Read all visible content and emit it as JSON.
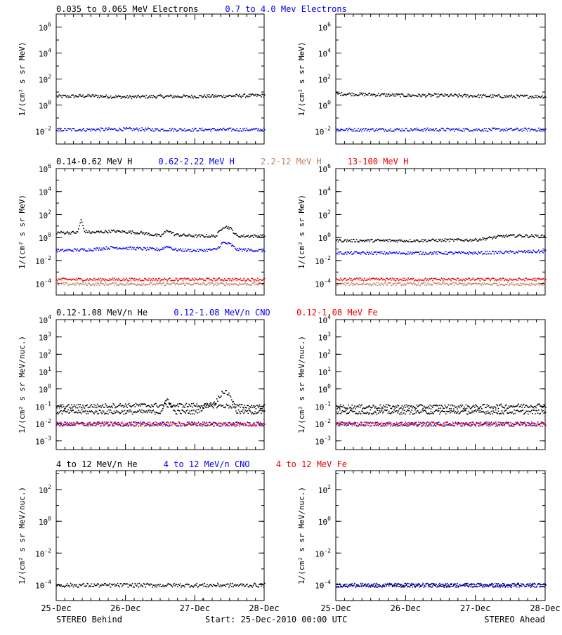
{
  "colors": {
    "black": "#000000",
    "blue": "#0000ee",
    "tan": "#c08060",
    "red": "#ee0000"
  },
  "footer": {
    "left_label": "STEREO Behind",
    "center_label": "Start: 25-Dec-2010 00:00 UTC",
    "right_label": "STEREO Ahead"
  },
  "chart_data": [
    {
      "row": 0,
      "type": "scatter",
      "legend_text": [
        {
          "text": "0.035 to 0.065 MeV Electrons",
          "color": "#000000"
        },
        {
          "text": "0.7 to 4.0 Mev Electrons",
          "color": "#0000ee"
        }
      ],
      "ylabel": "1/(cm² s sr MeV)",
      "y_scale": "log",
      "ylim_log10": [
        -3,
        7
      ],
      "y_ticks": [
        {
          "exp": -2,
          "label": "10-2"
        },
        {
          "exp": 0,
          "label": "100"
        },
        {
          "exp": 2,
          "label": "102"
        },
        {
          "exp": 4,
          "label": "104"
        },
        {
          "exp": 6,
          "label": "106"
        }
      ],
      "x_ticks": [
        "25-Dec",
        "26-Dec",
        "27-Dec",
        "28-Dec"
      ],
      "xlim_days": [
        0,
        3
      ],
      "panels": [
        {
          "side": "STEREO Behind",
          "series": [
            {
              "color": "#000000",
              "x": [
                0,
                0.5,
                1,
                1.5,
                2,
                2.5,
                3
              ],
              "y": [
                5,
                5.5,
                4.5,
                5,
                5,
                5.5,
                6
              ]
            },
            {
              "color": "#0000ee",
              "x": [
                0,
                0.5,
                1,
                1.5,
                2,
                2.5,
                3
              ],
              "y": [
                0.014,
                0.014,
                0.015,
                0.014,
                0.014,
                0.014,
                0.014
              ]
            }
          ]
        },
        {
          "side": "STEREO Ahead",
          "series": [
            {
              "color": "#000000",
              "x": [
                0,
                0.5,
                1,
                1.5,
                2,
                2.5,
                3
              ],
              "y": [
                8,
                7,
                6,
                6,
                5.5,
                5,
                5
              ]
            },
            {
              "color": "#0000ee",
              "x": [
                0,
                0.5,
                1,
                1.5,
                2,
                2.5,
                3
              ],
              "y": [
                0.014,
                0.014,
                0.014,
                0.014,
                0.014,
                0.014,
                0.014
              ]
            }
          ]
        }
      ]
    },
    {
      "row": 1,
      "type": "scatter",
      "legend_text": [
        {
          "text": "0.14-0.62 MeV H",
          "color": "#000000"
        },
        {
          "text": "0.62-2.22 MeV H",
          "color": "#0000ee"
        },
        {
          "text": "2.2-12 MeV H",
          "color": "#c08060"
        },
        {
          "text": "13-100 MeV H",
          "color": "#ee0000"
        }
      ],
      "ylabel": "1/(cm² s sr MeV)",
      "y_scale": "log",
      "ylim_log10": [
        -5,
        6
      ],
      "y_ticks": [
        {
          "exp": -4,
          "label": "10-4"
        },
        {
          "exp": -2,
          "label": "10-2"
        },
        {
          "exp": 0,
          "label": "100"
        },
        {
          "exp": 2,
          "label": "102"
        },
        {
          "exp": 4,
          "label": "104"
        },
        {
          "exp": 6,
          "label": "106"
        }
      ],
      "x_ticks": [
        "25-Dec",
        "26-Dec",
        "27-Dec",
        "28-Dec"
      ],
      "xlim_days": [
        0,
        3
      ],
      "panels": [
        {
          "side": "STEREO Behind",
          "series": [
            {
              "color": "#000000",
              "x": [
                0,
                0.3,
                0.35,
                0.4,
                0.5,
                0.8,
                1.2,
                1.5,
                1.6,
                1.7,
                2.0,
                2.3,
                2.4,
                2.5,
                2.6,
                3
              ],
              "y": [
                3,
                3,
                40,
                4,
                3,
                4,
                3,
                1.5,
                5,
                2,
                1.5,
                1.5,
                10,
                8,
                1.5,
                1.5
              ]
            },
            {
              "color": "#0000ee",
              "x": [
                0,
                0.5,
                0.8,
                1.2,
                1.5,
                1.6,
                1.7,
                2.0,
                2.3,
                2.4,
                2.5,
                2.6,
                3
              ],
              "y": [
                0.08,
                0.1,
                0.15,
                0.12,
                0.1,
                0.2,
                0.1,
                0.08,
                0.1,
                0.4,
                0.3,
                0.1,
                0.08
              ]
            },
            {
              "color": "#ee0000",
              "x": [
                0,
                1,
                2,
                3
              ],
              "y": [
                0.00025,
                0.00025,
                0.00025,
                0.00025
              ]
            },
            {
              "color": "#c08060",
              "x": [
                0,
                1,
                2,
                3
              ],
              "y": [
                0.0001,
                0.0001,
                0.0001,
                0.0001
              ]
            }
          ]
        },
        {
          "side": "STEREO Ahead",
          "series": [
            {
              "color": "#000000",
              "x": [
                0,
                1,
                2,
                2.4,
                2.6,
                3
              ],
              "y": [
                0.6,
                0.6,
                0.7,
                1.5,
                1.6,
                1.4
              ]
            },
            {
              "color": "#0000ee",
              "x": [
                0,
                1,
                2,
                3
              ],
              "y": [
                0.05,
                0.05,
                0.05,
                0.07
              ]
            },
            {
              "color": "#ee0000",
              "x": [
                0,
                1,
                2,
                3
              ],
              "y": [
                0.00025,
                0.00025,
                0.00025,
                0.00025
              ]
            },
            {
              "color": "#c08060",
              "x": [
                0,
                1,
                2,
                3
              ],
              "y": [
                0.0001,
                0.0001,
                0.0001,
                0.0001
              ]
            }
          ]
        }
      ]
    },
    {
      "row": 2,
      "type": "scatter",
      "legend_text": [
        {
          "text": "0.12-1.08 MeV/n He",
          "color": "#000000"
        },
        {
          "text": "0.12-1.08 MeV/n CNO",
          "color": "#0000ee"
        },
        {
          "text": "0.12-1.08 MeV Fe",
          "color": "#ee0000"
        }
      ],
      "ylabel": "1/(cm² s sr MeV/nuc.)",
      "y_scale": "log",
      "ylim_log10": [
        -3.5,
        4
      ],
      "y_ticks": [
        {
          "exp": -3,
          "label": "10-3"
        },
        {
          "exp": -2,
          "label": "10-2"
        },
        {
          "exp": -1,
          "label": "10-1"
        },
        {
          "exp": 0,
          "label": "100"
        },
        {
          "exp": 1,
          "label": "101"
        },
        {
          "exp": 2,
          "label": "102"
        },
        {
          "exp": 3,
          "label": "103"
        },
        {
          "exp": 4,
          "label": "104"
        }
      ],
      "x_ticks": [
        "25-Dec",
        "26-Dec",
        "27-Dec",
        "28-Dec"
      ],
      "xlim_days": [
        0,
        3
      ],
      "panels": [
        {
          "side": "STEREO Behind",
          "series": [
            {
              "color": "#000000",
              "x": [
                0,
                0.5,
                1,
                1.5,
                1.6,
                1.7,
                2,
                2.3,
                2.4,
                2.5,
                2.6,
                3
              ],
              "y": [
                0.05,
                0.05,
                0.05,
                0.05,
                0.3,
                0.05,
                0.05,
                0.2,
                0.8,
                0.5,
                0.05,
                0.05
              ]
            },
            {
              "color": "#000000",
              "x": [
                0,
                1,
                2,
                3
              ],
              "y": [
                0.1,
                0.12,
                0.12,
                0.1
              ]
            },
            {
              "color": "#0000ee",
              "x": [
                0,
                1,
                2,
                3
              ],
              "y": [
                0.01,
                0.01,
                0.01,
                0.01
              ]
            },
            {
              "color": "#ee0000",
              "x": [
                0,
                1,
                2,
                3
              ],
              "y": [
                0.01,
                0.01,
                0.01,
                0.01
              ]
            }
          ]
        },
        {
          "side": "STEREO Ahead",
          "series": [
            {
              "color": "#000000",
              "x": [
                0,
                1,
                2,
                3
              ],
              "y": [
                0.05,
                0.05,
                0.05,
                0.05
              ]
            },
            {
              "color": "#000000",
              "x": [
                0,
                1,
                2,
                3
              ],
              "y": [
                0.1,
                0.1,
                0.1,
                0.12
              ]
            },
            {
              "color": "#0000ee",
              "x": [
                0,
                1,
                2,
                3
              ],
              "y": [
                0.01,
                0.01,
                0.01,
                0.01
              ]
            },
            {
              "color": "#ee0000",
              "x": [
                0,
                1,
                2,
                3
              ],
              "y": [
                0.01,
                0.01,
                0.01,
                0.01
              ]
            }
          ]
        }
      ]
    },
    {
      "row": 3,
      "type": "scatter",
      "legend_text": [
        {
          "text": "4 to 12 MeV/n He",
          "color": "#000000"
        },
        {
          "text": "4 to 12 MeV/n CNO",
          "color": "#0000ee"
        },
        {
          "text": "4 to 12 MeV Fe",
          "color": "#ee0000"
        }
      ],
      "ylabel": "1/(cm² s sr MeV/nuc.)",
      "y_scale": "log",
      "ylim_log10": [
        -5,
        3.2
      ],
      "y_ticks": [
        {
          "exp": -4,
          "label": "10-4"
        },
        {
          "exp": -2,
          "label": "10-2"
        },
        {
          "exp": 0,
          "label": "100"
        },
        {
          "exp": 2,
          "label": "102"
        }
      ],
      "x_ticks": [
        "25-Dec",
        "26-Dec",
        "27-Dec",
        "28-Dec"
      ],
      "xlim_days": [
        0,
        3
      ],
      "panels": [
        {
          "side": "STEREO Behind",
          "series": [
            {
              "color": "#000000",
              "x": [
                0,
                1,
                2,
                3
              ],
              "y": [
                0.0001,
                0.0001,
                0.0001,
                0.0001
              ]
            },
            {
              "color": "#0000ee",
              "x": [
                0.9,
                1.0,
                2.5
              ],
              "y": [
                1e-05,
                1e-05,
                1e-05
              ]
            },
            {
              "color": "#ee0000",
              "x": [
                0.95,
                2.5
              ],
              "y": [
                1e-05,
                1e-05
              ]
            }
          ]
        },
        {
          "side": "STEREO Ahead",
          "series": [
            {
              "color": "#000000",
              "x": [
                0,
                1,
                2,
                3
              ],
              "y": [
                0.0001,
                0.0001,
                0.0001,
                0.0001
              ]
            },
            {
              "color": "#0000ee",
              "x": [
                0,
                1,
                2,
                3
              ],
              "y": [
                0.0001,
                0.0001,
                0.0001,
                0.0001
              ]
            }
          ]
        }
      ]
    }
  ]
}
